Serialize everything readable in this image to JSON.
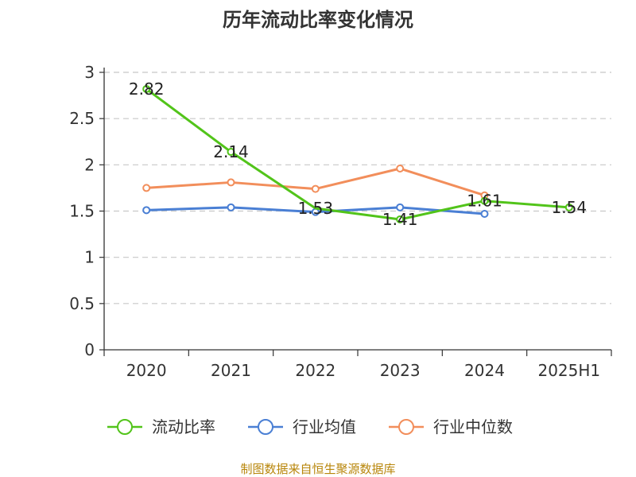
{
  "chart_data": {
    "type": "line",
    "title": "历年流动比率变化情况",
    "categories": [
      "2020",
      "2021",
      "2022",
      "2023",
      "2024",
      "2025H1"
    ],
    "ylim": [
      0,
      3
    ],
    "yticks": [
      "0",
      "0.5",
      "1",
      "1.5",
      "2",
      "2.5",
      "3"
    ],
    "grid": true,
    "legend_position": "bottom",
    "series": [
      {
        "name": "流动比率",
        "color": "#52c41a",
        "values": [
          2.82,
          2.14,
          1.53,
          1.41,
          1.61,
          1.54
        ],
        "labels": [
          "2.82",
          "2.14",
          "1.53",
          "1.41",
          "1.61",
          "1.54"
        ],
        "show_markers": [
          true,
          true,
          false,
          true,
          true,
          true
        ]
      },
      {
        "name": "行业均值",
        "color": "#4a7fd4",
        "values": [
          1.51,
          1.54,
          1.49,
          1.54,
          1.47,
          null
        ]
      },
      {
        "name": "行业中位数",
        "color": "#f28e5b",
        "values": [
          1.75,
          1.81,
          1.74,
          1.96,
          1.67,
          null
        ]
      }
    ],
    "source": "制图数据来自恒生聚源数据库"
  }
}
